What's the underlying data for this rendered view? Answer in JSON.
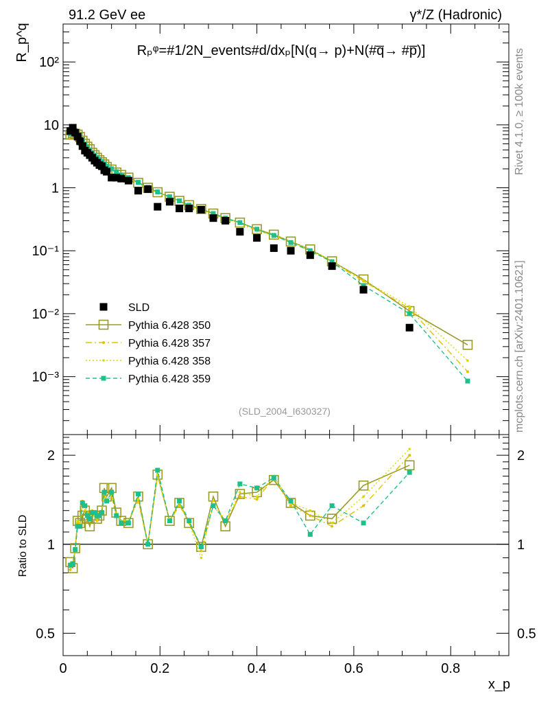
{
  "header": {
    "left": "91.2 GeV ee",
    "right": "γ*/Z (Hadronic)"
  },
  "side_labels": {
    "rivet": "Rivet 4.1.0, ≥ 100k events",
    "mcplots": "mcplots.cern.ch [arXiv:2401.10621]"
  },
  "watermark": "(SLD_2004_I630327)",
  "formula": "Rₚᵠ=#1/2N_events#d/dxₚ[N(q→ p)+N(#q̅→ #p̅)]",
  "chart_data": [
    {
      "type": "scatter",
      "title": "",
      "ylabel": "R_p^q",
      "xlabel": "x_p",
      "yscale": "log",
      "xlim": [
        0,
        0.92
      ],
      "ylim": [
        0.00012,
        400
      ],
      "x_ticks": [
        0,
        0.2,
        0.4,
        0.6,
        0.8
      ],
      "y_ticks": [
        {
          "value": 0.001,
          "label": "10⁻³"
        },
        {
          "value": 0.01,
          "label": "10⁻²"
        },
        {
          "value": 0.1,
          "label": "10⁻¹"
        },
        {
          "value": 1,
          "label": "1"
        },
        {
          "value": 10,
          "label": "10"
        },
        {
          "value": 100,
          "label": "10²"
        }
      ],
      "x": [
        0.015,
        0.02,
        0.025,
        0.03,
        0.035,
        0.04,
        0.045,
        0.05,
        0.055,
        0.06,
        0.065,
        0.07,
        0.075,
        0.08,
        0.085,
        0.09,
        0.1,
        0.11,
        0.12,
        0.135,
        0.155,
        0.175,
        0.195,
        0.22,
        0.24,
        0.26,
        0.285,
        0.31,
        0.335,
        0.365,
        0.4,
        0.435,
        0.47,
        0.51,
        0.555,
        0.62,
        0.715,
        0.835
      ],
      "series": [
        {
          "name": "SLD",
          "color": "#000000",
          "values": [
            8.0,
            9.0,
            7.5,
            6.5,
            5.5,
            4.6,
            3.9,
            3.6,
            3.3,
            3.0,
            2.7,
            2.5,
            2.3,
            2.2,
            1.9,
            1.8,
            1.45,
            1.45,
            1.4,
            1.3,
            0.9,
            0.95,
            0.5,
            0.6,
            0.47,
            0.47,
            0.45,
            0.33,
            0.3,
            0.2,
            0.16,
            0.11,
            0.1,
            0.085,
            0.057,
            0.024,
            0.006,
            null
          ]
        },
        {
          "name": "Pythia 6.428 350",
          "color": "#9a9a28",
          "values": [
            7.0,
            7.4,
            7.2,
            7.0,
            6.4,
            5.6,
            5.0,
            4.5,
            4.1,
            3.6,
            3.3,
            3.0,
            2.75,
            2.55,
            2.35,
            2.15,
            1.95,
            1.75,
            1.6,
            1.45,
            1.2,
            1.0,
            0.85,
            0.72,
            0.62,
            0.53,
            0.46,
            0.39,
            0.33,
            0.28,
            0.22,
            0.18,
            0.14,
            0.105,
            0.068,
            0.035,
            0.011,
            0.0032
          ]
        },
        {
          "name": "Pythia 6.428 357",
          "color": "#e0c000",
          "values": [
            6.8,
            7.3,
            7.1,
            6.9,
            6.3,
            5.5,
            4.9,
            4.4,
            4.0,
            3.55,
            3.25,
            2.95,
            2.7,
            2.5,
            2.3,
            2.1,
            1.9,
            1.72,
            1.58,
            1.42,
            1.18,
            0.98,
            0.84,
            0.7,
            0.6,
            0.52,
            0.45,
            0.38,
            0.32,
            0.27,
            0.21,
            0.175,
            0.135,
            0.1,
            0.066,
            0.033,
            0.012,
            0.0012
          ]
        },
        {
          "name": "Pythia 6.428 358",
          "color": "#d8d800",
          "values": [
            6.9,
            7.4,
            7.2,
            7.0,
            6.4,
            5.6,
            5.0,
            4.5,
            4.1,
            3.6,
            3.3,
            3.0,
            2.75,
            2.55,
            2.35,
            2.15,
            1.95,
            1.75,
            1.6,
            1.45,
            1.2,
            1.0,
            0.85,
            0.72,
            0.62,
            0.53,
            0.46,
            0.39,
            0.33,
            0.28,
            0.22,
            0.18,
            0.14,
            0.105,
            0.068,
            0.034,
            0.013,
            0.0018
          ]
        },
        {
          "name": "Pythia 6.428 359",
          "color": "#1ec08a",
          "values": [
            7.2,
            7.6,
            7.3,
            7.0,
            6.3,
            5.5,
            4.9,
            4.4,
            4.0,
            3.6,
            3.3,
            3.0,
            2.8,
            2.6,
            2.4,
            2.2,
            2.0,
            1.8,
            1.6,
            1.45,
            1.22,
            1.02,
            0.86,
            0.72,
            0.62,
            0.53,
            0.46,
            0.39,
            0.33,
            0.28,
            0.22,
            0.175,
            0.135,
            0.1,
            0.067,
            0.028,
            0.01,
            0.00085
          ]
        }
      ]
    },
    {
      "type": "line",
      "title": "",
      "ylabel": "Ratio to SLD",
      "xlabel": "x_p",
      "yscale": "log",
      "xlim": [
        0,
        0.92
      ],
      "ylim": [
        0.42,
        2.35
      ],
      "y_ticks": [
        {
          "value": 0.5,
          "label": "0.5"
        },
        {
          "value": 1,
          "label": "1"
        },
        {
          "value": 2,
          "label": "2"
        }
      ],
      "x": [
        0.015,
        0.02,
        0.025,
        0.03,
        0.035,
        0.04,
        0.045,
        0.05,
        0.055,
        0.06,
        0.065,
        0.07,
        0.075,
        0.08,
        0.085,
        0.09,
        0.1,
        0.11,
        0.12,
        0.135,
        0.155,
        0.175,
        0.195,
        0.22,
        0.24,
        0.26,
        0.285,
        0.31,
        0.335,
        0.365,
        0.4,
        0.435,
        0.47,
        0.51,
        0.555,
        0.62,
        0.715
      ],
      "series": [
        {
          "name": "Pythia 6.428 350",
          "color": "#9a9a28",
          "values": [
            0.87,
            0.83,
            0.97,
            1.2,
            1.18,
            1.25,
            1.3,
            1.22,
            1.15,
            1.25,
            1.25,
            1.22,
            1.25,
            1.3,
            1.55,
            1.45,
            1.55,
            1.28,
            1.2,
            1.18,
            1.45,
            1.0,
            1.72,
            1.2,
            1.38,
            1.18,
            0.98,
            1.45,
            1.15,
            1.48,
            1.5,
            1.65,
            1.38,
            1.25,
            1.22,
            1.58,
            1.85
          ]
        },
        {
          "name": "Pythia 6.428 357",
          "color": "#e0c000",
          "values": [
            0.82,
            0.86,
            0.96,
            1.18,
            1.16,
            1.4,
            1.35,
            1.28,
            1.2,
            1.3,
            1.25,
            1.2,
            1.25,
            1.28,
            1.45,
            1.4,
            1.45,
            1.25,
            1.2,
            1.2,
            1.4,
            1.0,
            1.7,
            1.2,
            1.35,
            1.2,
            0.95,
            1.35,
            1.2,
            1.45,
            1.42,
            1.68,
            1.35,
            1.25,
            1.15,
            1.35,
            2.0
          ]
        },
        {
          "name": "Pythia 6.428 358",
          "color": "#d8d800",
          "values": [
            0.84,
            0.87,
            0.97,
            1.2,
            1.18,
            1.35,
            1.3,
            1.25,
            1.2,
            1.28,
            1.25,
            1.2,
            1.25,
            1.3,
            1.5,
            1.42,
            1.48,
            1.27,
            1.2,
            1.2,
            1.42,
            1.0,
            1.72,
            1.2,
            1.38,
            1.18,
            0.9,
            1.4,
            1.2,
            1.5,
            1.45,
            1.7,
            1.38,
            1.3,
            1.18,
            1.45,
            2.1
          ]
        },
        {
          "name": "Pythia 6.428 359",
          "color": "#1ec08a",
          "values": [
            0.85,
            0.86,
            0.96,
            1.15,
            1.15,
            1.38,
            1.35,
            1.25,
            1.22,
            1.28,
            1.28,
            1.25,
            1.25,
            1.28,
            1.5,
            1.4,
            1.5,
            1.25,
            1.18,
            1.18,
            1.48,
            1.0,
            1.78,
            1.2,
            1.4,
            1.2,
            0.98,
            1.35,
            1.2,
            1.6,
            1.55,
            1.68,
            1.4,
            1.08,
            1.35,
            1.18,
            1.75
          ]
        }
      ]
    }
  ]
}
